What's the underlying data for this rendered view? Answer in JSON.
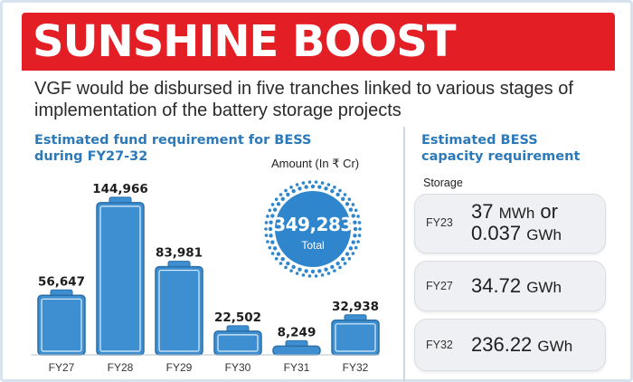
{
  "header": {
    "title": "SUNSHINE BOOST",
    "subtitle": "VGF would be disbursed in five tranches linked to various stages of implementation of the battery storage projects"
  },
  "fund_section": {
    "heading": "Estimated fund requirement for BESS during FY27-32",
    "amount_label": "Amount (In ₹ Cr)",
    "total_value": "349,283",
    "total_label": "Total"
  },
  "chart_data": {
    "type": "bar",
    "title": "Estimated fund requirement for BESS during FY27-32",
    "ylabel": "Amount (In ₹ Cr)",
    "categories": [
      "FY27",
      "FY28",
      "FY29",
      "FY30",
      "FY31",
      "FY32"
    ],
    "values": [
      56647,
      144966,
      83981,
      22502,
      8249,
      32938
    ],
    "value_labels": [
      "56,647",
      "144,966",
      "83,981",
      "22,502",
      "8,249",
      "32,938"
    ],
    "ylim": [
      0,
      150000
    ],
    "grid": false
  },
  "capacity_section": {
    "heading": "Estimated BESS capacity requirement",
    "storage_label": "Storage",
    "items": [
      {
        "year": "FY23",
        "line1_num": "37",
        "line1_unit": "MWh",
        "line1_or": "or",
        "line2_num": "0.037",
        "line2_unit": "GWh"
      },
      {
        "year": "FY27",
        "line1_num": "34.72",
        "line1_unit": "GWh"
      },
      {
        "year": "FY32",
        "line1_num": "236.22",
        "line1_unit": "GWh"
      }
    ]
  },
  "colors": {
    "banner": "#e31e24",
    "heading": "#2b79b8",
    "bar": "#3d8fd1",
    "bar_outline": "#2a6ea6",
    "badge": "#2f86cc"
  }
}
